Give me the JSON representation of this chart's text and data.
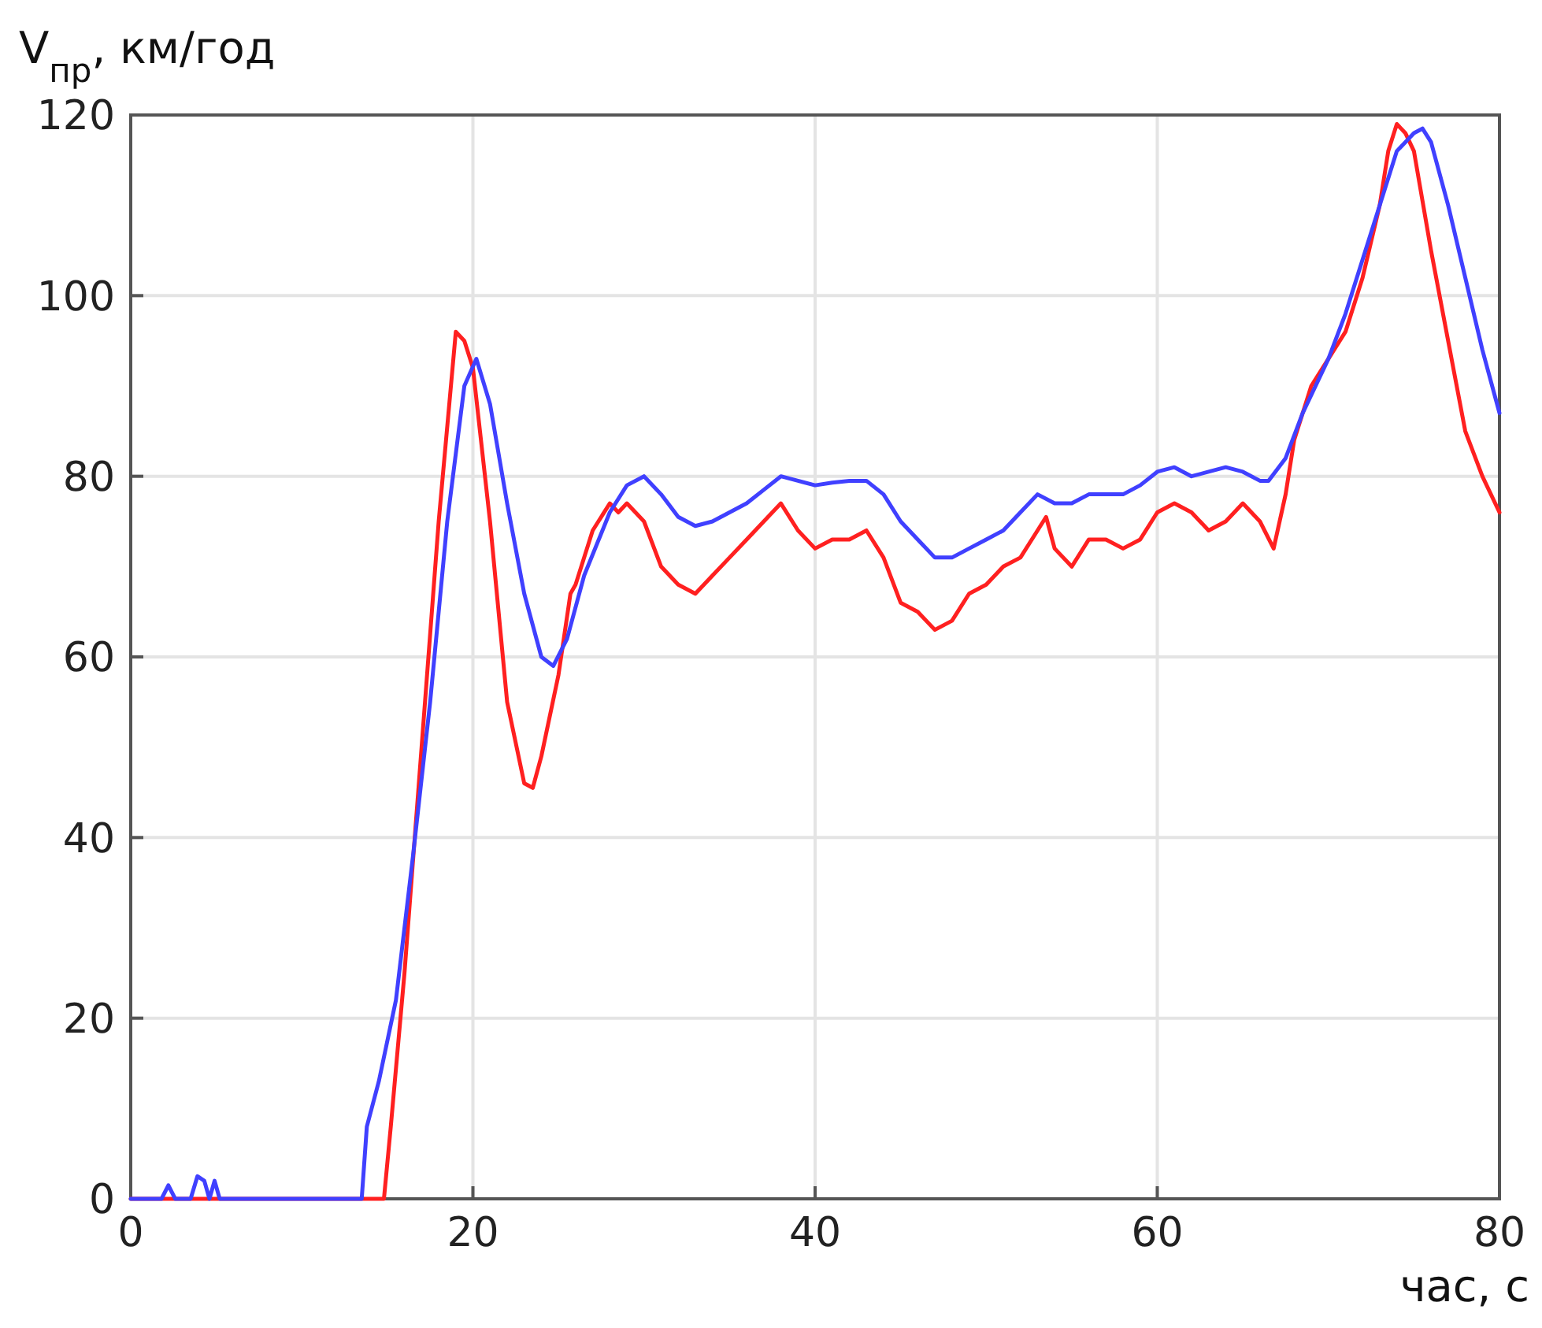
{
  "chart_data": {
    "type": "line",
    "xlabel": "час, с",
    "ylabel": "V$_{пр}$, км/год",
    "xlim": [
      0,
      80
    ],
    "ylim": [
      0,
      120
    ],
    "xticks": [
      0,
      20,
      40,
      60,
      80
    ],
    "yticks": [
      0,
      20,
      40,
      60,
      80,
      100,
      120
    ],
    "grid": true,
    "line_style": "solid",
    "marker": "none",
    "series": [
      {
        "color": "#ff2020",
        "x": [
          0,
          14.8,
          15.2,
          16,
          17,
          18,
          19,
          19.5,
          20,
          21,
          22,
          23,
          23.5,
          24,
          25,
          25.7,
          26,
          27,
          28,
          28.5,
          29,
          30,
          31,
          32,
          33,
          34,
          35,
          36,
          37,
          38,
          39,
          40,
          41,
          42,
          43,
          44,
          45,
          46,
          47,
          48,
          49,
          50,
          51,
          52,
          53,
          53.5,
          54,
          55,
          56,
          57,
          58,
          59,
          60,
          61,
          62,
          63,
          64,
          65,
          66,
          66.8,
          67.5,
          68,
          69,
          70,
          71,
          72,
          73,
          73.5,
          74,
          74.5,
          75,
          76,
          77,
          78,
          79,
          80
        ],
        "values": [
          0,
          0,
          8,
          25,
          50,
          75,
          96,
          95,
          92,
          75,
          55,
          46,
          45.5,
          49,
          58,
          67,
          68,
          74,
          77,
          76,
          77,
          75,
          70,
          68,
          67,
          69,
          71,
          73,
          75,
          77,
          74,
          72,
          73,
          73,
          74,
          71,
          66,
          65,
          63,
          64,
          67,
          68,
          70,
          71,
          74,
          75.5,
          72,
          70,
          73,
          73,
          72,
          73,
          76,
          77,
          76,
          74,
          75,
          77,
          75,
          72,
          78,
          84,
          90,
          93,
          96,
          102,
          110,
          116,
          119,
          118,
          116,
          105,
          95,
          85,
          80,
          76
        ]
      },
      {
        "color": "#4040ff",
        "x": [
          0,
          1.8,
          2.2,
          2.6,
          3.5,
          3.9,
          4.3,
          4.6,
          4.9,
          5.2,
          13.5,
          13.8,
          14.5,
          15.5,
          16.5,
          17.5,
          18.5,
          19.5,
          20.2,
          21,
          22,
          23,
          24,
          24.7,
          25.5,
          26.5,
          28,
          29,
          30,
          31,
          32,
          33,
          34,
          35,
          36,
          37,
          38,
          39,
          40,
          41,
          42,
          43,
          44,
          45,
          46,
          47,
          48,
          49,
          50,
          51,
          52,
          53,
          54,
          55,
          56,
          57,
          58,
          59,
          60,
          61,
          62,
          63,
          64,
          65,
          66,
          66.5,
          67.5,
          68.5,
          70,
          71,
          72,
          73,
          74,
          75,
          75.5,
          76,
          77,
          78,
          79,
          80
        ],
        "values": [
          0,
          0,
          1.5,
          0,
          0,
          2.5,
          2,
          0,
          2,
          0,
          0,
          8,
          13,
          22,
          38,
          55,
          75,
          90,
          93,
          88,
          77,
          67,
          60,
          59,
          62,
          69,
          76,
          79,
          80,
          78,
          75.5,
          74.5,
          75,
          76,
          77,
          78.5,
          80,
          79.5,
          79,
          79.3,
          79.5,
          79.5,
          78,
          75,
          73,
          71,
          71,
          72,
          73,
          74,
          76,
          78,
          77,
          77,
          78,
          78,
          78,
          79,
          80.5,
          81,
          80,
          80.5,
          81,
          80.5,
          79.5,
          79.5,
          82,
          87,
          93,
          98,
          104,
          110,
          116,
          118,
          118.5,
          117,
          110,
          102,
          94,
          87
        ]
      }
    ]
  }
}
